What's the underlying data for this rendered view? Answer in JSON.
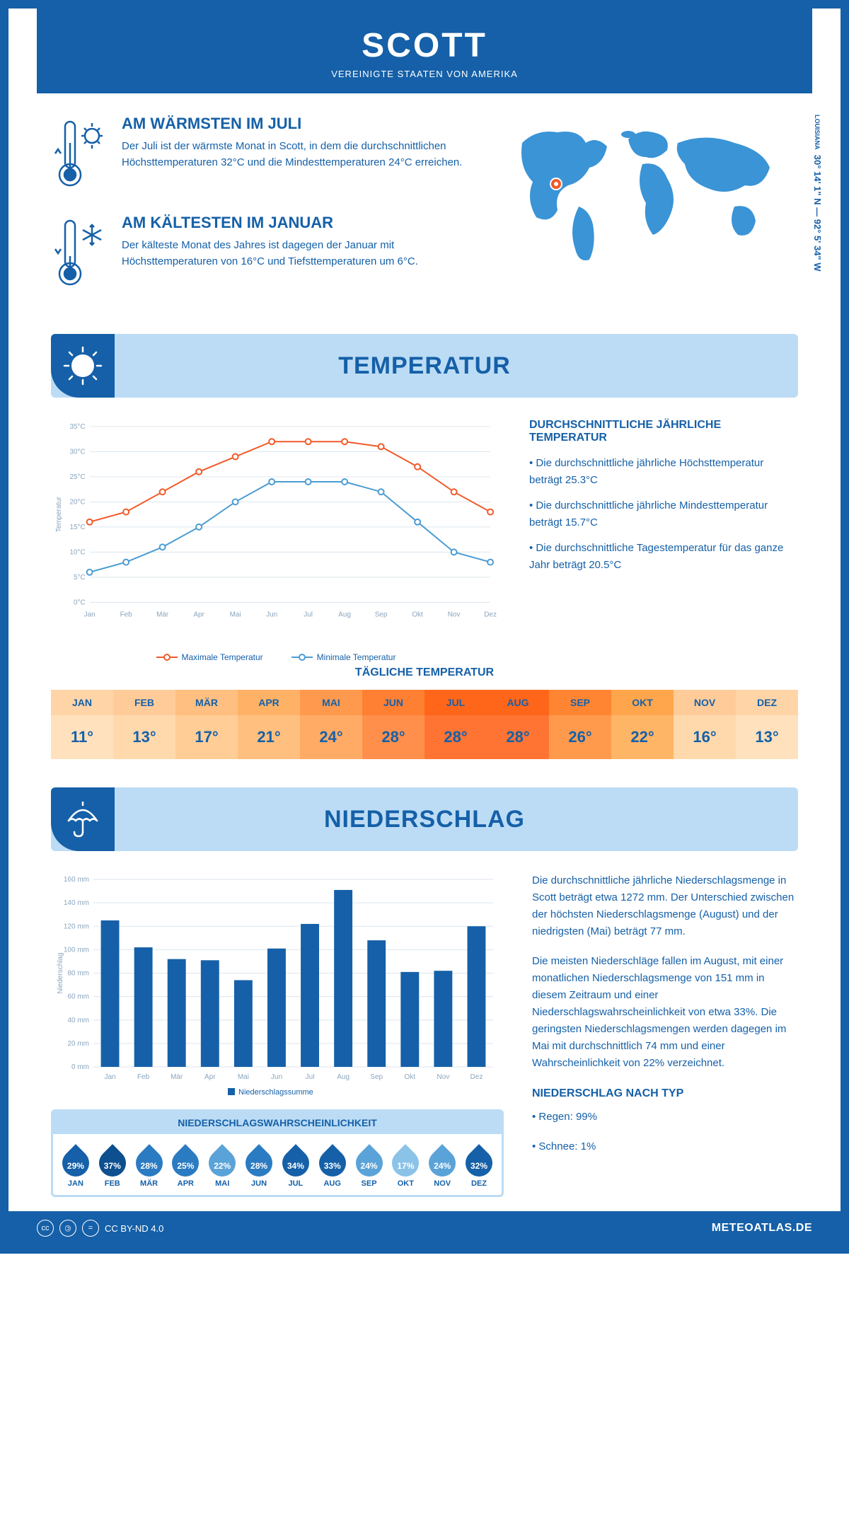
{
  "header": {
    "title": "SCOTT",
    "subtitle": "VEREINIGTE STAATEN VON AMERIKA"
  },
  "coords": {
    "state": "LOUISIANA",
    "text": "30° 14' 1\" N — 92° 5' 34\" W"
  },
  "warm": {
    "title": "AM WÄRMSTEN IM JULI",
    "text": "Der Juli ist der wärmste Monat in Scott, in dem die durchschnittlichen Höchsttemperaturen 32°C und die Mindesttemperaturen 24°C erreichen."
  },
  "cold": {
    "title": "AM KÄLTESTEN IM JANUAR",
    "text": "Der kälteste Monat des Jahres ist dagegen der Januar mit Höchsttemperaturen von 16°C und Tiefsttemperaturen um 6°C."
  },
  "sections": {
    "temp": "TEMPERATUR",
    "precip": "NIEDERSCHLAG"
  },
  "temp_chart": {
    "type": "line",
    "months": [
      "Jan",
      "Feb",
      "Mär",
      "Apr",
      "Mai",
      "Jun",
      "Jul",
      "Aug",
      "Sep",
      "Okt",
      "Nov",
      "Dez"
    ],
    "max": [
      16,
      18,
      22,
      26,
      29,
      32,
      32,
      32,
      31,
      27,
      22,
      18
    ],
    "min": [
      6,
      8,
      11,
      15,
      20,
      24,
      24,
      24,
      22,
      16,
      10,
      8
    ],
    "ylim": [
      0,
      35
    ],
    "ytick_step": 5,
    "yunit": "°C",
    "ylabel": "Temperatur",
    "max_color": "#f15a29",
    "min_color": "#4b9cd3",
    "grid_color": "#dce6ee",
    "axis_color": "#8aa5bd",
    "line_width": 2,
    "marker_size": 4,
    "legend_max": "Maximale Temperatur",
    "legend_min": "Minimale Temperatur"
  },
  "temp_info": {
    "heading": "DURCHSCHNITTLICHE JÄHRLICHE TEMPERATUR",
    "l1": "• Die durchschnittliche jährliche Höchsttemperatur beträgt 25.3°C",
    "l2": "• Die durchschnittliche jährliche Mindesttemperatur beträgt 15.7°C",
    "l3": "• Die durchschnittliche Tagestemperatur für das ganze Jahr beträgt 20.5°C"
  },
  "daily_title": "TÄGLICHE TEMPERATUR",
  "daily": {
    "months": [
      "JAN",
      "FEB",
      "MÄR",
      "APR",
      "MAI",
      "JUN",
      "JUL",
      "AUG",
      "SEP",
      "OKT",
      "NOV",
      "DEZ"
    ],
    "temps": [
      "11°",
      "13°",
      "17°",
      "21°",
      "24°",
      "28°",
      "28°",
      "28°",
      "26°",
      "22°",
      "16°",
      "13°"
    ],
    "head_colors": [
      "#ffd5a8",
      "#ffcc99",
      "#ffbf80",
      "#ffb266",
      "#ff994d",
      "#ff7f33",
      "#ff661a",
      "#ff661a",
      "#ff8533",
      "#ffa64d",
      "#ffcc99",
      "#ffd5a8"
    ],
    "val_colors": [
      "#ffe1bd",
      "#ffd9ac",
      "#ffcd95",
      "#ffbf7e",
      "#ffab66",
      "#ff8f4a",
      "#ff7433",
      "#ff7433",
      "#ff9a4d",
      "#ffb566",
      "#ffd9ac",
      "#ffe1bd"
    ]
  },
  "precip_chart": {
    "type": "bar",
    "months": [
      "Jan",
      "Feb",
      "Mär",
      "Apr",
      "Mai",
      "Jun",
      "Jul",
      "Aug",
      "Sep",
      "Okt",
      "Nov",
      "Dez"
    ],
    "values": [
      125,
      102,
      92,
      91,
      74,
      101,
      122,
      151,
      108,
      81,
      82,
      120
    ],
    "ylim": [
      0,
      160
    ],
    "ytick_step": 20,
    "yunit": " mm",
    "ylabel": "Niederschlag",
    "bar_color": "#1560a8",
    "grid_color": "#dce6ee",
    "axis_color": "#8aa5bd",
    "bar_width": 0.55,
    "legend": "Niederschlagssumme"
  },
  "precip_text": {
    "p1": "Die durchschnittliche jährliche Niederschlagsmenge in Scott beträgt etwa 1272 mm. Der Unterschied zwischen der höchsten Niederschlagsmenge (August) und der niedrigsten (Mai) beträgt 77 mm.",
    "p2": "Die meisten Niederschläge fallen im August, mit einer monatlichen Niederschlagsmenge von 151 mm in diesem Zeitraum und einer Niederschlagswahrscheinlichkeit von etwa 33%. Die geringsten Niederschlagsmengen werden dagegen im Mai mit durchschnittlich 74 mm und einer Wahrscheinlichkeit von 22% verzeichnet.",
    "type_heading": "NIEDERSCHLAG NACH TYP",
    "rain": "• Regen: 99%",
    "snow": "• Schnee: 1%"
  },
  "prob": {
    "title": "NIEDERSCHLAGSWAHRSCHEINLICHKEIT",
    "months": [
      "JAN",
      "FEB",
      "MÄR",
      "APR",
      "MAI",
      "JUN",
      "JUL",
      "AUG",
      "SEP",
      "OKT",
      "NOV",
      "DEZ"
    ],
    "values": [
      "29%",
      "37%",
      "28%",
      "25%",
      "22%",
      "28%",
      "34%",
      "33%",
      "24%",
      "17%",
      "24%",
      "32%"
    ],
    "colors": [
      "#1560a8",
      "#0d4f8f",
      "#2b7bc2",
      "#2b7bc2",
      "#5aa3d8",
      "#2b7bc2",
      "#1560a8",
      "#1560a8",
      "#5aa3d8",
      "#8bc3e8",
      "#5aa3d8",
      "#1560a8"
    ]
  },
  "footer": {
    "license": "CC BY-ND 4.0",
    "site": "METEOATLAS.DE"
  },
  "colors": {
    "primary": "#1560a8",
    "light": "#bcdcf5"
  }
}
